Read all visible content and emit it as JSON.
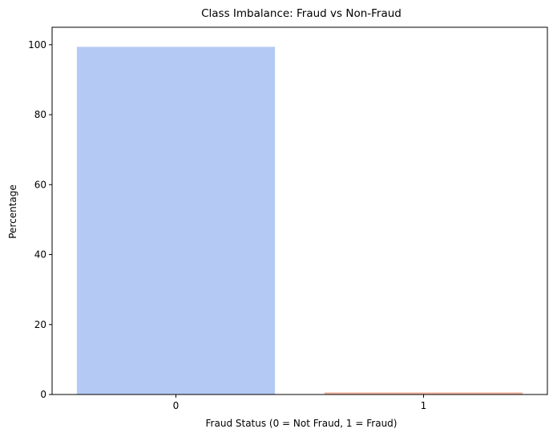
{
  "chart_data": {
    "type": "bar",
    "title": "Class Imbalance: Fraud vs Non-Fraud",
    "xlabel": "Fraud Status (0 = Not Fraud, 1 = Fraud)",
    "ylabel": "Percentage",
    "categories": [
      "0",
      "1"
    ],
    "values": [
      99.4,
      0.6
    ],
    "colors": [
      "#b4c9f3",
      "#f2b59f"
    ],
    "ylim": [
      0,
      105
    ],
    "yticks": [
      0,
      20,
      40,
      60,
      80,
      100
    ],
    "grid": false,
    "legend": "none"
  }
}
